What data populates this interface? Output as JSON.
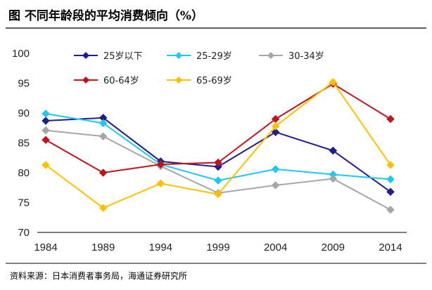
{
  "title": "图    不同年龄段的平均消费倾向（%）",
  "source": "资料来源：日本消费者事务局，海通证券研究所",
  "chart_data": {
    "type": "line",
    "x": [
      "1984",
      "1989",
      "1994",
      "1999",
      "2004",
      "2009",
      "2014"
    ],
    "ylim": [
      70,
      100
    ],
    "yticks": [
      70,
      75,
      80,
      85,
      90,
      95,
      100
    ],
    "grid": false,
    "legend_position": "top",
    "series": [
      {
        "name": "25岁以下",
        "color": "#1f1f8c",
        "marker": "diamond",
        "values": [
          88.7,
          89.2,
          81.9,
          81.0,
          86.8,
          83.7,
          76.8
        ]
      },
      {
        "name": "25-29岁",
        "color": "#1ec8f0",
        "marker": "diamond",
        "values": [
          89.9,
          88.3,
          81.4,
          78.7,
          80.6,
          79.7,
          78.9
        ]
      },
      {
        "name": "30-34岁",
        "color": "#a6a6a6",
        "marker": "diamond",
        "values": [
          87.1,
          86.1,
          81.1,
          76.6,
          77.9,
          79.0,
          73.8
        ]
      },
      {
        "name": "60-64岁",
        "color": "#c0141c",
        "marker": "diamond",
        "values": [
          85.5,
          80.0,
          81.4,
          81.7,
          89.0,
          94.9,
          89.0
        ]
      },
      {
        "name": "65-69岁",
        "color": "#ffc000",
        "marker": "diamond",
        "values": [
          81.3,
          74.1,
          78.2,
          76.4,
          87.8,
          95.2,
          81.3
        ]
      }
    ]
  }
}
